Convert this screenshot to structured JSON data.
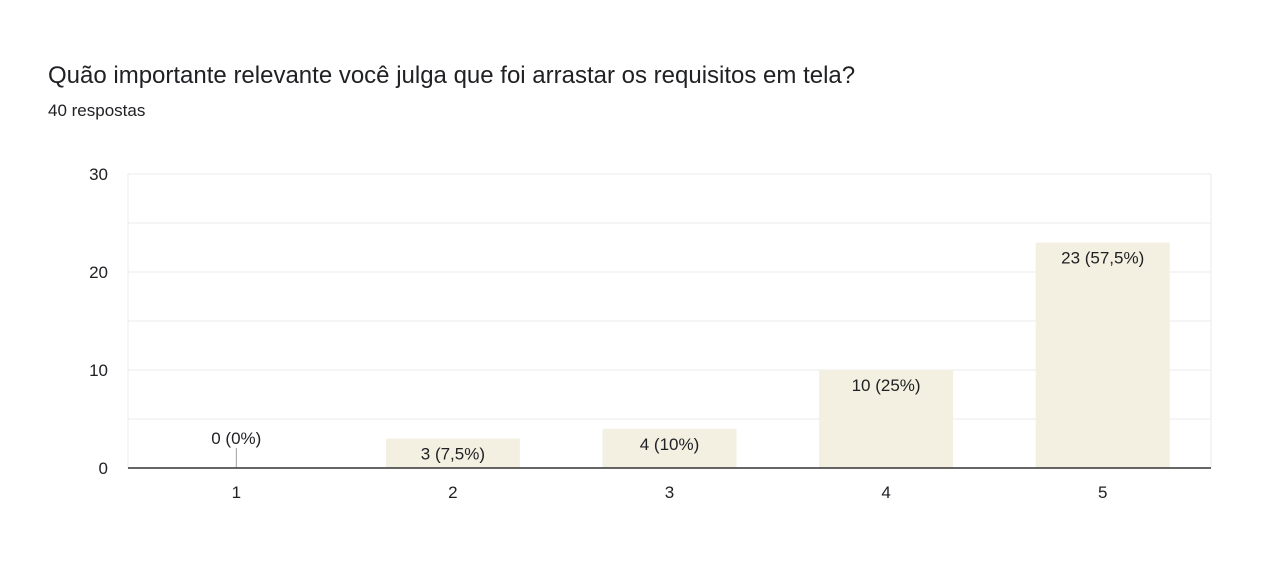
{
  "question": {
    "title": "Quão importante relevante você julga que foi arrastar os requisitos em tela?",
    "responses": "40 respostas"
  },
  "colors": {
    "bar": "#f3f0e1",
    "gridline": "#ebebeb",
    "axis": "#333333",
    "text": "#202124"
  },
  "chart_data": {
    "type": "bar",
    "categories": [
      "1",
      "2",
      "3",
      "4",
      "5"
    ],
    "values": [
      0,
      3,
      4,
      10,
      23
    ],
    "data_labels": [
      "0 (0%)",
      "3 (7,5%)",
      "4 (10%)",
      "10 (25%)",
      "23 (57,5%)"
    ],
    "ylim": [
      0,
      30
    ],
    "yticks": [
      0,
      10,
      20,
      30
    ],
    "minor_grid_step": 5,
    "grid": true,
    "legend": "none"
  }
}
